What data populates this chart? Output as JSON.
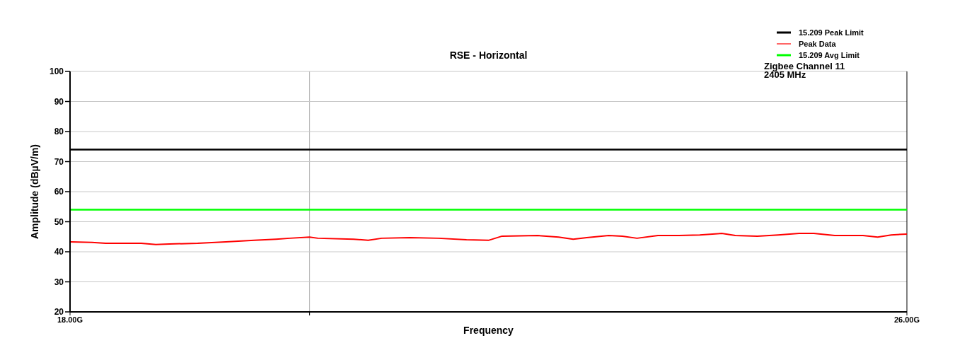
{
  "chart_data": {
    "type": "line",
    "title": "RSE - Horizontal",
    "xlabel": "Frequency",
    "ylabel": "Amplitude (dBµV/m)",
    "annotations": [
      "Zigbee Channel 11",
      "2405 MHz"
    ],
    "xlim": [
      18,
      26
    ],
    "xticks": [
      {
        "value": 18,
        "label": "18.00G"
      },
      {
        "value": 20.29,
        "label": null
      },
      {
        "value": 26,
        "label": "26.00G"
      }
    ],
    "ylim": [
      20,
      100
    ],
    "yticks": [
      20,
      30,
      40,
      50,
      60,
      70,
      80,
      90,
      100
    ],
    "ref_lines": [
      {
        "axis": "x",
        "value": 20.29,
        "color": "#b4b4b4"
      }
    ],
    "grid": "y",
    "legend": "top right",
    "marker": "none",
    "line_style": "solid",
    "series": [
      {
        "name": "15.209 Peak Limit",
        "color": "#000000",
        "x": [
          18,
          26
        ],
        "values": [
          74,
          74
        ]
      },
      {
        "name": "Peak Data",
        "color": "#ff0000",
        "x": [
          18.0,
          18.21,
          18.34,
          18.68,
          18.82,
          18.95,
          19.22,
          19.49,
          19.76,
          19.97,
          20.1,
          20.29,
          20.37,
          20.71,
          20.85,
          20.98,
          21.25,
          21.52,
          21.79,
          22.0,
          22.13,
          22.47,
          22.67,
          22.81,
          22.94,
          23.15,
          23.28,
          23.42,
          23.62,
          23.82,
          24.02,
          24.23,
          24.36,
          24.57,
          24.77,
          24.97,
          25.11,
          25.31,
          25.58,
          25.72,
          25.85,
          26.0
        ],
        "values": [
          43.3,
          43.1,
          42.8,
          42.8,
          42.4,
          42.6,
          42.8,
          43.3,
          43.8,
          44.2,
          44.5,
          44.9,
          44.5,
          44.2,
          43.8,
          44.5,
          44.7,
          44.5,
          44.0,
          43.8,
          45.2,
          45.4,
          44.9,
          44.2,
          44.7,
          45.4,
          45.2,
          44.5,
          45.4,
          45.4,
          45.6,
          46.1,
          45.4,
          45.2,
          45.6,
          46.1,
          46.1,
          45.4,
          45.4,
          44.9,
          45.6,
          45.9
        ]
      },
      {
        "name": "15.209 Avg Limit",
        "color": "#00ff00",
        "x": [
          18,
          26
        ],
        "values": [
          54,
          54
        ]
      }
    ]
  }
}
